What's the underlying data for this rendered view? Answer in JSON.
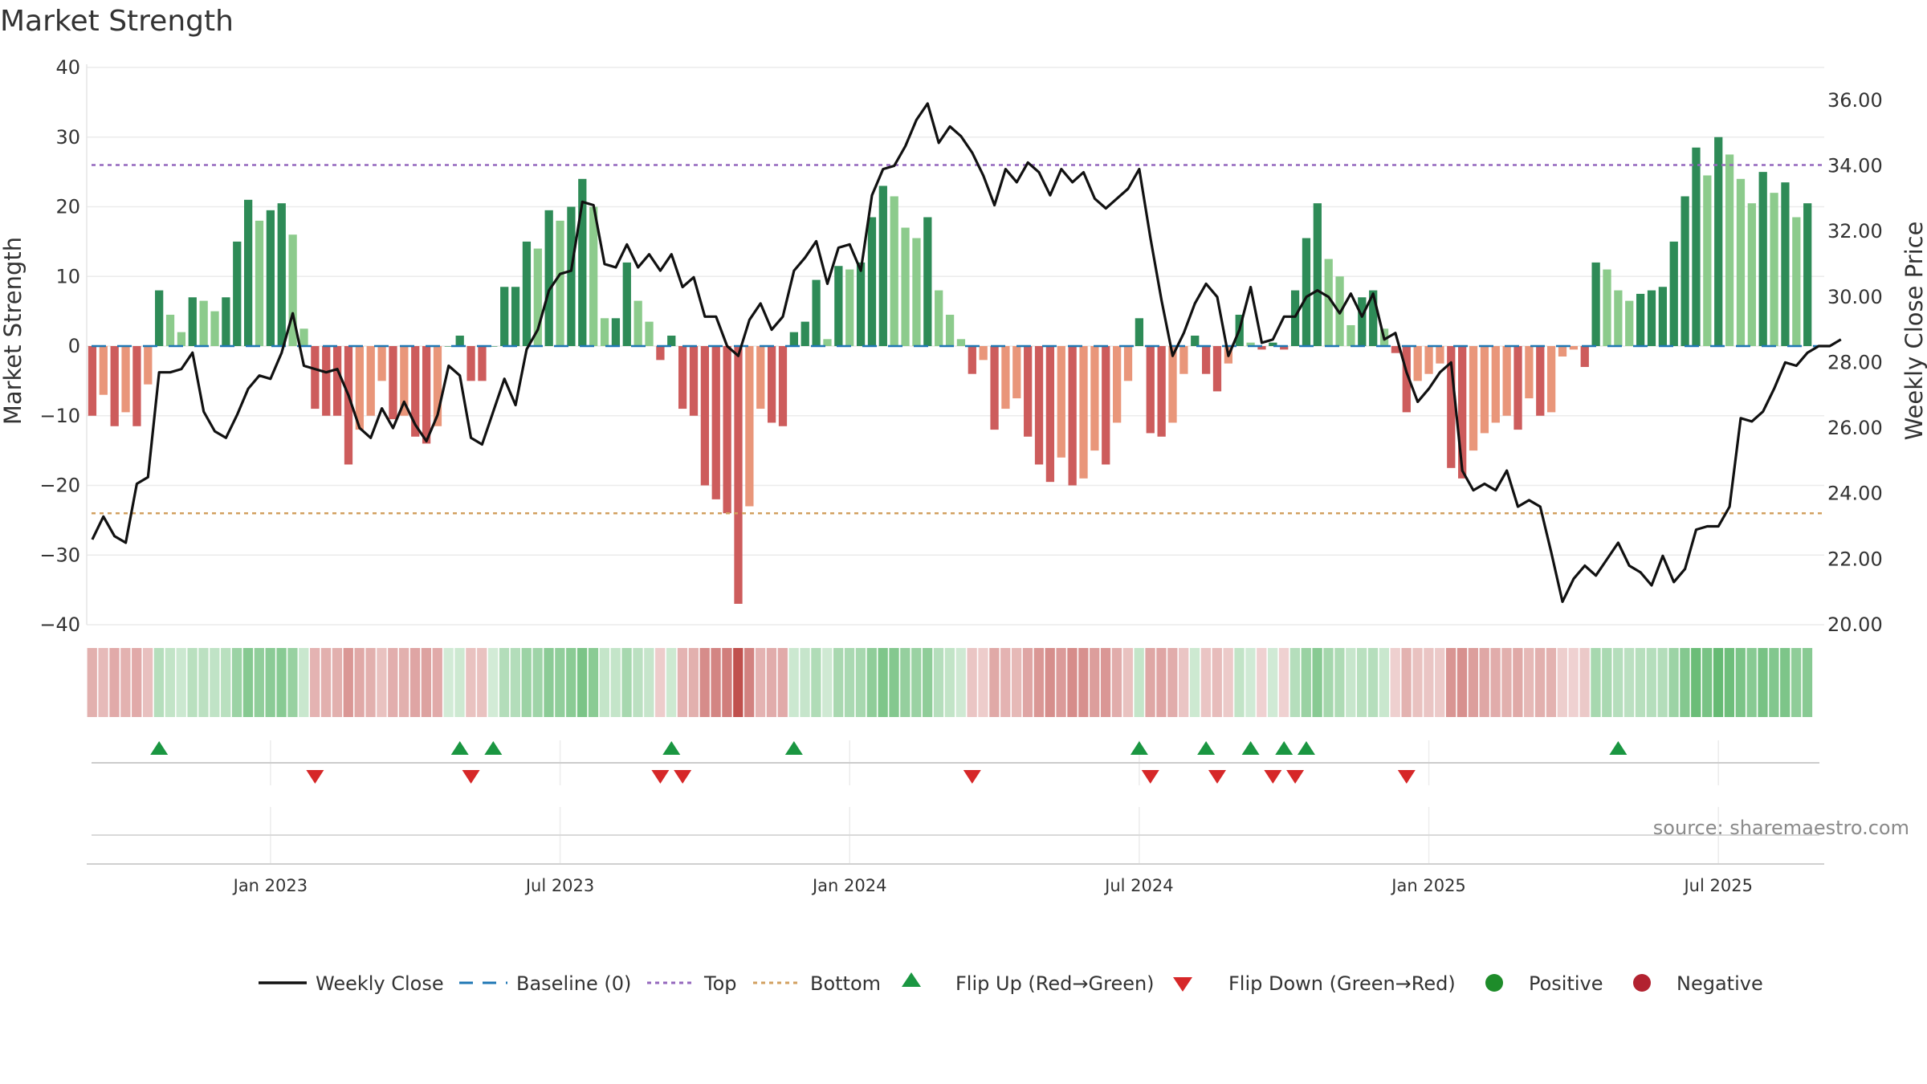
{
  "chart_data": {
    "type": "bar",
    "title": "Market Strength",
    "ylabel_left": "Market Strength",
    "ylabel_right": "Weekly Close Price",
    "ylim_left": [
      -40,
      40
    ],
    "ylim_right": [
      20,
      37
    ],
    "yticks_left": [
      "40",
      "30",
      "20",
      "10",
      "0",
      "−10",
      "−20",
      "−30",
      "−40"
    ],
    "yticks_left_values": [
      40,
      30,
      20,
      10,
      0,
      -10,
      -20,
      -30,
      -40
    ],
    "yticks_right": [
      "36.00",
      "34.00",
      "32.00",
      "30.00",
      "28.00",
      "26.00",
      "24.00",
      "22.00",
      "20.00"
    ],
    "yticks_right_values": [
      36,
      34,
      32,
      30,
      28,
      26,
      24,
      22,
      20
    ],
    "x_start": "2022-09-12",
    "week_count": 156,
    "xticks": [
      {
        "label": "Jan 2023",
        "week": 16
      },
      {
        "label": "Jul 2023",
        "week": 42
      },
      {
        "label": "Jan 2024",
        "week": 68
      },
      {
        "label": "Jul 2024",
        "week": 94
      },
      {
        "label": "Jan 2025",
        "week": 120
      },
      {
        "label": "Jul 2025",
        "week": 146
      }
    ],
    "top_level": 26,
    "bottom_level": -24,
    "baseline": 0,
    "strength": [
      -10,
      -7,
      -11.5,
      -9.5,
      -11.5,
      -5.5,
      8,
      4.5,
      2,
      7,
      6.5,
      5,
      7,
      15,
      21,
      18,
      19.5,
      20.5,
      16,
      2.5,
      -9,
      -10,
      -10,
      -17,
      -12,
      -10,
      -5,
      -10.5,
      -10,
      -13,
      -14,
      -11.5,
      0,
      1.5,
      -5,
      -5,
      0,
      8.5,
      8.5,
      15,
      14,
      19.5,
      18,
      20,
      24,
      20,
      4,
      4,
      12,
      6.5,
      3.5,
      -2,
      1.5,
      -9,
      -10,
      -20,
      -22,
      -24,
      -37,
      -23,
      -9,
      -11,
      -11.5,
      2,
      3.5,
      9.5,
      1,
      11.5,
      11,
      12,
      18.5,
      23,
      21.5,
      17,
      15.5,
      18.5,
      8,
      4.5,
      1,
      -4,
      -2,
      -12,
      -9,
      -7.5,
      -13,
      -17,
      -19.5,
      -16,
      -20,
      -19,
      -15,
      -17,
      -11,
      -5,
      4,
      -12.5,
      -13,
      -11,
      -4,
      1.5,
      -4,
      -6.5,
      -2.5,
      4.5,
      0.5,
      -0.5,
      0.5,
      -0.5,
      8,
      15.5,
      20.5,
      12.5,
      10,
      3,
      7,
      8,
      2.5,
      -1,
      -9.5,
      -5,
      -4,
      -2.5,
      -17.5,
      -19,
      -15,
      -12.5,
      -11,
      -10,
      -12,
      -7.5,
      -10,
      -9.5,
      -1.5,
      -0.5,
      -3,
      12,
      11,
      8,
      6.5,
      7.5,
      8,
      8.5,
      15,
      21.5,
      28.5,
      24.5,
      30,
      27.5,
      24,
      20.5,
      25,
      22,
      23.5,
      18.5,
      20.5
    ],
    "weekly_close": [
      22.6,
      23.3,
      22.7,
      22.5,
      24.3,
      24.5,
      27.7,
      27.7,
      27.8,
      28.3,
      26.5,
      25.9,
      25.7,
      26.4,
      27.2,
      27.6,
      27.5,
      28.3,
      29.5,
      27.9,
      27.8,
      27.7,
      27.8,
      27.0,
      26.0,
      25.7,
      26.6,
      26.0,
      26.8,
      26.1,
      25.6,
      26.4,
      27.9,
      27.6,
      25.7,
      25.5,
      26.5,
      27.5,
      26.7,
      28.4,
      29.0,
      30.2,
      30.7,
      30.8,
      32.9,
      32.8,
      31.0,
      30.9,
      31.6,
      30.9,
      31.3,
      30.8,
      31.3,
      30.3,
      30.6,
      29.4,
      29.4,
      28.5,
      28.2,
      29.3,
      29.8,
      29.0,
      29.4,
      30.8,
      31.2,
      31.7,
      30.4,
      31.5,
      31.6,
      30.8,
      33.1,
      33.9,
      34.0,
      34.6,
      35.4,
      35.9,
      34.7,
      35.2,
      34.9,
      34.4,
      33.7,
      32.8,
      33.9,
      33.5,
      34.1,
      33.8,
      33.1,
      33.9,
      33.5,
      33.8,
      33.0,
      32.7,
      33.0,
      33.3,
      33.9,
      31.8,
      29.9,
      28.2,
      28.9,
      29.8,
      30.4,
      30.0,
      28.2,
      29.0,
      30.3,
      28.6,
      28.7,
      29.4,
      29.4,
      30.0,
      30.2,
      30.0,
      29.5,
      30.1,
      29.4,
      30.1,
      28.7,
      28.9,
      27.7,
      26.8,
      27.2,
      27.7,
      28.0,
      24.7,
      24.1,
      24.3,
      24.1,
      24.7,
      23.6,
      23.8,
      23.6,
      22.2,
      20.7,
      21.4,
      21.8,
      21.5,
      22.0,
      22.5,
      21.8,
      21.6,
      21.2,
      22.1,
      21.3,
      21.7,
      22.9,
      23.0,
      23.0,
      23.6,
      26.3,
      26.2,
      26.5,
      27.2,
      28.0,
      27.9,
      28.3,
      28.5,
      28.5,
      28.7
    ],
    "flip_up_weeks": [
      6,
      33,
      36,
      52,
      63,
      94,
      100,
      104,
      107,
      109,
      137
    ],
    "flip_down_weeks": [
      20,
      34,
      51,
      53,
      79,
      95,
      101,
      106,
      108,
      118
    ],
    "legend": [
      {
        "key": "close",
        "label": "Weekly Close"
      },
      {
        "key": "baseline",
        "label": "Baseline (0)"
      },
      {
        "key": "top",
        "label": "Top"
      },
      {
        "key": "bottom",
        "label": "Bottom"
      },
      {
        "key": "flip_up",
        "label": "Flip Up (Red→Green)"
      },
      {
        "key": "flip_down",
        "label": "Flip Down (Green→Red)"
      },
      {
        "key": "positive",
        "label": "Positive"
      },
      {
        "key": "negative",
        "label": "Negative"
      }
    ],
    "source": "source: sharemaestro.com",
    "colors": {
      "pos_dark": "#2e8b57",
      "pos_light": "#8ccb8c",
      "neg_dark": "#cd5c5c",
      "neg_light": "#e9967a",
      "close": "#111111",
      "baseline": "#1f77b4",
      "top": "#9467bd",
      "bottom": "#d2a060",
      "flip_up": "#1a9641",
      "flip_down": "#d62728",
      "positive_dot": "#1e8c2a",
      "negative_dot": "#b22230"
    }
  }
}
